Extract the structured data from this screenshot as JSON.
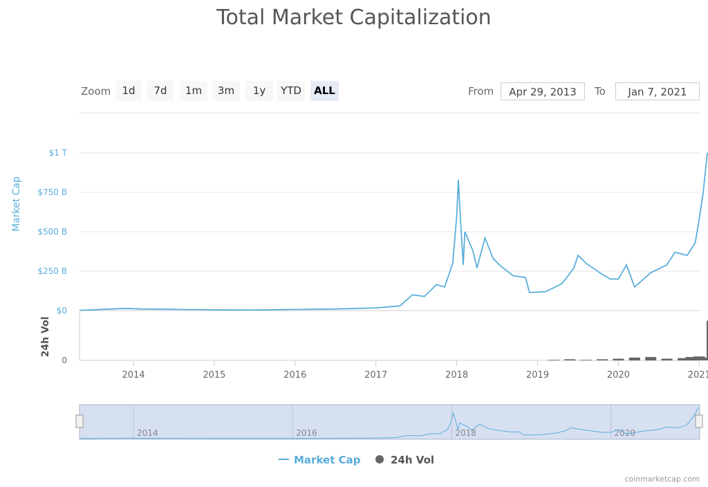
{
  "title": "Total Market Capitalization",
  "zoom": {
    "label": "Zoom",
    "buttons": [
      "1d",
      "7d",
      "1m",
      "3m",
      "1y",
      "YTD",
      "ALL"
    ],
    "selected": "ALL"
  },
  "range": {
    "from_label": "From",
    "from_value": "Apr 29, 2013",
    "to_label": "To",
    "to_value": "Jan 7, 2021"
  },
  "legend": {
    "market_cap": "Market Cap",
    "volume": "24h Vol"
  },
  "credit": "coinmarketcap.com",
  "colors": {
    "market_cap": "#5aaedb",
    "volume": "#666666",
    "navigator_mask": "#c9d5ec"
  },
  "chart_data": {
    "type": "line",
    "title": "Total Market Capitalization",
    "ylabel": "Market Cap",
    "ylabel2": "24h Vol",
    "ylim": [
      0,
      1000
    ],
    "yticks": [
      "$0",
      "$250 B",
      "$500 B",
      "$750 B",
      "$1 T"
    ],
    "y2ticks": [
      "0"
    ],
    "xticks": [
      "2014",
      "2015",
      "2016",
      "2017",
      "2018",
      "2019",
      "2020",
      "2021"
    ],
    "navigator_ticks": [
      "2014",
      "2016",
      "2018",
      "2020"
    ],
    "grid": true,
    "legend_position": "bottom",
    "series": [
      {
        "name": "Market Cap",
        "unit": "B USD",
        "x": [
          2013.33,
          2013.9,
          2014.1,
          2014.5,
          2015.0,
          2015.5,
          2016.0,
          2016.5,
          2017.0,
          2017.3,
          2017.45,
          2017.6,
          2017.75,
          2017.85,
          2017.95,
          2018.0,
          2018.02,
          2018.05,
          2018.08,
          2018.1,
          2018.2,
          2018.25,
          2018.35,
          2018.45,
          2018.55,
          2018.7,
          2018.85,
          2018.9,
          2019.1,
          2019.3,
          2019.45,
          2019.5,
          2019.6,
          2019.8,
          2019.9,
          2020.0,
          2020.1,
          2020.2,
          2020.4,
          2020.6,
          2020.7,
          2020.85,
          2020.95,
          2021.0,
          2021.05,
          2021.1
        ],
        "y": [
          1.5,
          14,
          10,
          8,
          5,
          4,
          7,
          10,
          17,
          30,
          100,
          90,
          165,
          150,
          300,
          600,
          830,
          550,
          290,
          500,
          380,
          270,
          460,
          330,
          280,
          220,
          210,
          115,
          120,
          170,
          270,
          350,
          300,
          230,
          200,
          200,
          290,
          150,
          240,
          290,
          370,
          350,
          430,
          580,
          750,
          1000
        ]
      },
      {
        "name": "24h Vol",
        "x": [
          2019.2,
          2019.4,
          2019.6,
          2019.8,
          2020.0,
          2020.2,
          2020.4,
          2020.6,
          2020.8,
          2020.9,
          2021.0,
          2021.05,
          2021.1
        ],
        "y": [
          1,
          2,
          1,
          2,
          3,
          5,
          6,
          3,
          4,
          6,
          7,
          5,
          70
        ]
      }
    ]
  }
}
